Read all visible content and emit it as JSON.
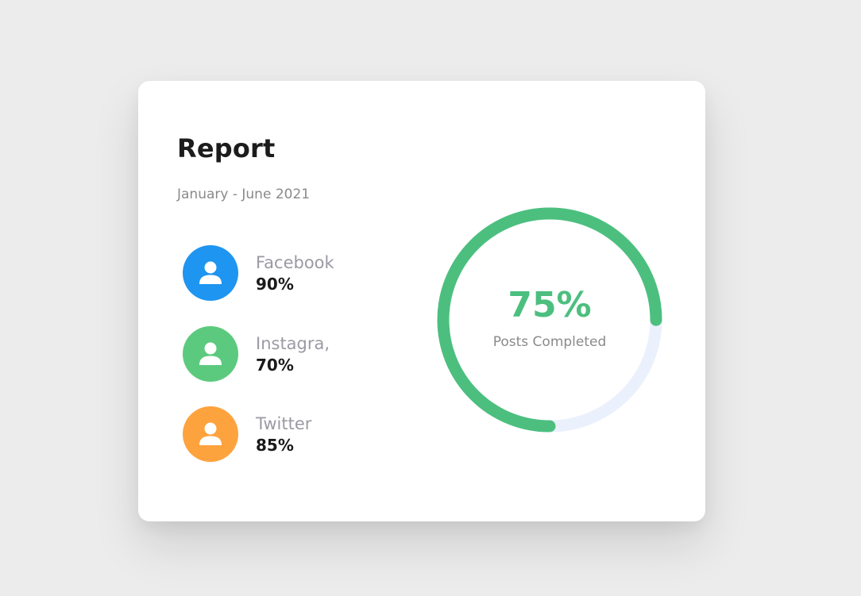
{
  "report": {
    "title": "Report",
    "date_range": "January - June 2021"
  },
  "platforms": [
    {
      "name": "Facebook",
      "value": "90%",
      "color": "#1e95f0",
      "icon": "user-icon"
    },
    {
      "name": "Instagra,",
      "value": "70%",
      "color": "#5cca7e",
      "icon": "user-icon"
    },
    {
      "name": "Twitter",
      "value": "85%",
      "color": "#fda33e",
      "icon": "user-icon"
    }
  ],
  "progress": {
    "value_label": "75%",
    "caption": "Posts Completed",
    "fraction": 0.75,
    "color": "#4cbf7f",
    "track_color": "#eaf1fc"
  }
}
